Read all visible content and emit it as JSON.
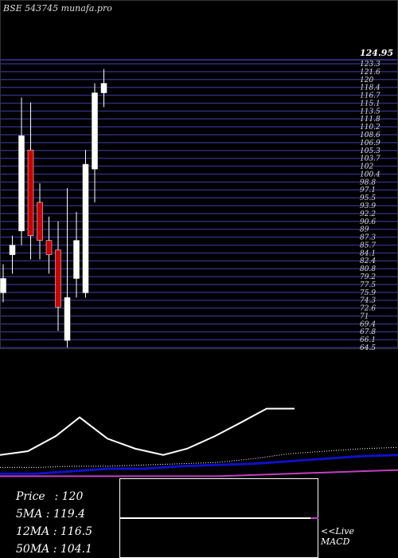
{
  "site": {
    "title": "BSE 543745 munafa.pro"
  },
  "price_panel": {
    "last_price_label": "124.95",
    "axis_labels": [
      "123.3",
      "121.6",
      "120",
      "118.4",
      "116.7",
      "115.1",
      "113.5",
      "111.8",
      "110.2",
      "108.6",
      "106.9",
      "105.3",
      "103.7",
      "102",
      "100.4",
      "98.8",
      "97.1",
      "95.5",
      "93.9",
      "92.2",
      "90.6",
      "89",
      "87.3",
      "85.7",
      "84.1",
      "82.4",
      "80.8",
      "79.2",
      "77.5",
      "75.9",
      "74.3",
      "72.6",
      "71",
      "69.4",
      "67.8",
      "66.1",
      "64.5"
    ]
  },
  "stats": {
    "price_label": "Price",
    "price_value": "120",
    "ma5_label": "5MA",
    "ma5_value": "119.4",
    "ma12_label": "12MA",
    "ma12_value": "116.5",
    "ma50_label": "50MA",
    "ma50_value": "104.1"
  },
  "macd_panel": {
    "line1": "<<Live",
    "line2": "MACD"
  },
  "colors": {
    "bull": "#ffffff",
    "bear": "#cc0000",
    "grid": "#2c2c7a",
    "ma_blue": "#1010c8",
    "ma_pink": "#c040c0",
    "ma_dotted": "#ffffff"
  },
  "chart_data": [
    {
      "type": "candlestick",
      "title": "BSE 543745",
      "ylim": [
        64.5,
        124.95
      ],
      "candles": [
        {
          "o": 76,
          "h": 82,
          "l": 74,
          "c": 79
        },
        {
          "o": 84,
          "h": 88,
          "l": 80,
          "c": 86
        },
        {
          "o": 89,
          "h": 117,
          "l": 86,
          "c": 109
        },
        {
          "o": 106,
          "h": 116,
          "l": 83,
          "c": 88
        },
        {
          "o": 95,
          "h": 99,
          "l": 83,
          "c": 87
        },
        {
          "o": 87,
          "h": 92,
          "l": 80,
          "c": 84
        },
        {
          "o": 85,
          "h": 91,
          "l": 68,
          "c": 73
        },
        {
          "o": 66,
          "h": 98,
          "l": 64.5,
          "c": 75
        },
        {
          "o": 79,
          "h": 93,
          "l": 75,
          "c": 87
        },
        {
          "o": 76,
          "h": 106,
          "l": 75,
          "c": 103
        },
        {
          "o": 102,
          "h": 120,
          "l": 95,
          "c": 118
        },
        {
          "o": 118,
          "h": 123,
          "l": 115,
          "c": 120
        }
      ]
    },
    {
      "type": "line",
      "series": [
        {
          "values": [
            55,
            58,
            70,
            85,
            68,
            60,
            55,
            60,
            70,
            80,
            92,
            92
          ]
        },
        {
          "values": [
            40,
            40,
            42,
            44,
            44,
            46,
            47,
            48,
            50,
            52,
            54,
            55
          ]
        },
        {
          "values": [
            38,
            38,
            38,
            38,
            38,
            38,
            38,
            39,
            40,
            41,
            42,
            43
          ]
        },
        {
          "values": [
            45,
            45,
            46,
            46,
            47,
            48,
            49,
            52,
            56,
            58,
            60,
            61
          ]
        }
      ]
    },
    {
      "type": "line",
      "series": [
        {
          "values": [
            0.5,
            0.5,
            0.5,
            0.5,
            0.5,
            0.5,
            0.5,
            0.5,
            0.5,
            0.5,
            0.5,
            0.5
          ]
        }
      ]
    }
  ]
}
